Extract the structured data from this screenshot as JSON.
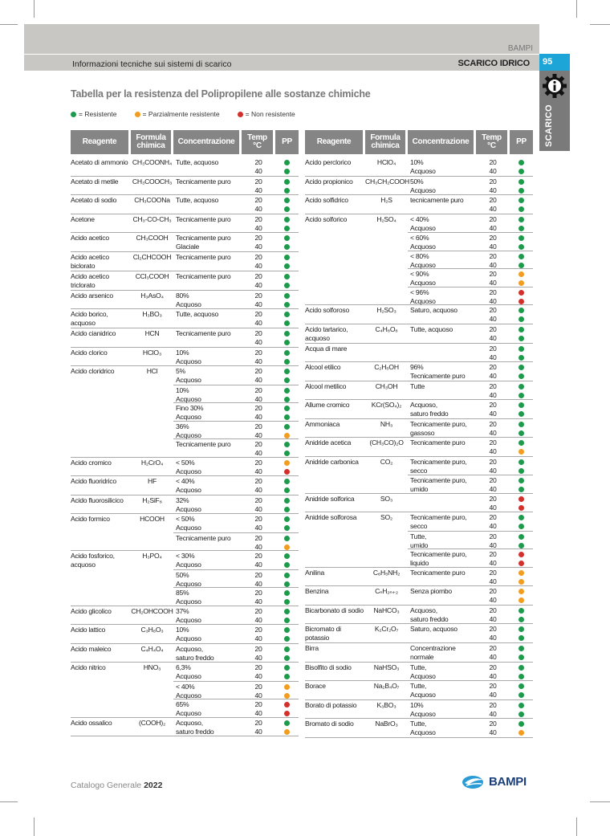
{
  "header": {
    "brand": "BAMPI",
    "title": "Informazioni tecniche sui sistemi di scarico",
    "section": "SCARICO IDRICO",
    "page_number": "95",
    "side_tab": "SCARICO",
    "side_icon": "gear-info-icon"
  },
  "main": {
    "title": "Tabella per la resistenza del Polipropilene alle sostanze chimiche"
  },
  "colors": {
    "g": "#1e9a4c",
    "o": "#f29d1f",
    "r": "#d3302b",
    "accent": "#1ea5d7"
  },
  "legend": [
    {
      "key": "g",
      "label": "= Resistente"
    },
    {
      "key": "o",
      "label": "= Parzialmente resistente"
    },
    {
      "key": "r",
      "label": "= Non resistente"
    }
  ],
  "columns": [
    "Reagente",
    "Formula\nchimica",
    "Concentrazione",
    "Temp\n°C",
    "PP"
  ],
  "temps": "20\n40",
  "tables": [
    [
      {
        "name": "Acetato di ammonio",
        "formula": "CH₃COONH₄",
        "subs": [
          {
            "conc": "Tutte, acquoso",
            "pp": [
              "g",
              "g"
            ]
          }
        ]
      },
      {
        "name": "Acetato di metile",
        "formula": "CH₃COOCH₃",
        "subs": [
          {
            "conc": "Tecnicamente puro",
            "pp": [
              "g",
              "g"
            ]
          }
        ]
      },
      {
        "name": "Acetato di sodio",
        "formula": "CH₃COONa",
        "subs": [
          {
            "conc": "Tutte, acquoso",
            "pp": [
              "g",
              "g"
            ]
          }
        ]
      },
      {
        "name": "Acetone",
        "formula": "CH₃-CO-CH₃",
        "subs": [
          {
            "conc": "Tecnicamente puro",
            "pp": [
              "g",
              "g"
            ]
          }
        ]
      },
      {
        "name": "Acido acetico",
        "formula": "CH₃COOH",
        "subs": [
          {
            "conc": "Tecnicamente puro\nGlaciale",
            "pp": [
              "g",
              "g"
            ]
          }
        ]
      },
      {
        "name": "Acido acetico\nbiclorato",
        "formula": "Cl₂CHCOOH",
        "subs": [
          {
            "conc": "Tecnicamente puro",
            "pp": [
              "g",
              "g"
            ]
          }
        ]
      },
      {
        "name": "Acido acetico\ntriclorato",
        "formula": "CCl₃COOH",
        "subs": [
          {
            "conc": "Tecnicamente puro",
            "pp": [
              "g",
              "g"
            ]
          }
        ]
      },
      {
        "name": "Acido arsenico",
        "formula": "H₃AsO₄",
        "subs": [
          {
            "conc": "80%\nAcquoso",
            "pp": [
              "g",
              "g"
            ]
          }
        ]
      },
      {
        "name": "Acido borico,\nacquoso",
        "formula": "H₃BO₃",
        "subs": [
          {
            "conc": "Tutte, acquoso",
            "pp": [
              "g",
              "g"
            ]
          }
        ]
      },
      {
        "name": "Acido cianidrico",
        "formula": "HCN",
        "subs": [
          {
            "conc": "Tecnicamente puro",
            "pp": [
              "g",
              "g"
            ]
          }
        ]
      },
      {
        "name": "Acido clorico",
        "formula": "HClO₃",
        "subs": [
          {
            "conc": "10%\nAcquoso",
            "pp": [
              "g",
              "g"
            ]
          }
        ]
      },
      {
        "name": "Acido cloridrico",
        "formula": "HCl",
        "subs": [
          {
            "conc": "5%\nAcquoso",
            "pp": [
              "g",
              "g"
            ]
          },
          {
            "conc": "10%\nAcquoso",
            "pp": [
              "g",
              "g"
            ]
          },
          {
            "conc": "Fino 30%\nAcquoso",
            "pp": [
              "g",
              "g"
            ]
          },
          {
            "conc": "36%\nAcquoso",
            "pp": [
              "g",
              "o"
            ]
          },
          {
            "conc": "Tecnicamente puro",
            "pp": [
              "g",
              "g"
            ]
          }
        ]
      },
      {
        "name": "Acido cromico",
        "formula": "H₂CrO₄",
        "subs": [
          {
            "conc": "< 50%\nAcquoso",
            "pp": [
              "o",
              "r"
            ]
          }
        ]
      },
      {
        "name": "Acido fluoridrico",
        "formula": "HF",
        "subs": [
          {
            "conc": "< 40%\nAcquoso",
            "pp": [
              "g",
              "g"
            ]
          }
        ]
      },
      {
        "name": "Acido fluorosilicico",
        "formula": "H₂SiF₆",
        "subs": [
          {
            "conc": "32%\nAcquoso",
            "pp": [
              "g",
              "g"
            ]
          }
        ]
      },
      {
        "name": "Acido formico",
        "formula": "HCOOH",
        "subs": [
          {
            "conc": "< 50%\nAcquoso",
            "pp": [
              "g",
              "g"
            ]
          },
          {
            "conc": "Tecnicamente puro",
            "pp": [
              "g",
              "o"
            ]
          }
        ]
      },
      {
        "name": "Acido fosforico,\nacquoso",
        "formula": "H₃PO₄",
        "subs": [
          {
            "conc": "< 30%\nAcquoso",
            "pp": [
              "g",
              "g"
            ]
          },
          {
            "conc": "50%\nAcquoso",
            "pp": [
              "g",
              "g"
            ]
          },
          {
            "conc": "85%\nAcquoso",
            "pp": [
              "g",
              "g"
            ]
          }
        ]
      },
      {
        "name": "Acido glicolico",
        "formula": "CH₂OHCOOH",
        "subs": [
          {
            "conc": "37%\nAcquoso",
            "pp": [
              "g",
              "g"
            ]
          }
        ]
      },
      {
        "name": "Acido lattico",
        "formula": "C₃H₆O₃",
        "subs": [
          {
            "conc": "10%\nAcquoso",
            "pp": [
              "g",
              "g"
            ]
          }
        ]
      },
      {
        "name": "Acido maleico",
        "formula": "C₄H₄O₄",
        "subs": [
          {
            "conc": "Acquoso,\nsaturo freddo",
            "pp": [
              "g",
              "g"
            ]
          }
        ]
      },
      {
        "name": "Acido nitrico",
        "formula": "HNO₃",
        "subs": [
          {
            "conc": "6,3%\nAcquoso",
            "pp": [
              "g",
              "g"
            ]
          },
          {
            "conc": "< 40%\nAcquoso",
            "pp": [
              "o",
              "o"
            ]
          },
          {
            "conc": "65%\nAcquoso",
            "pp": [
              "r",
              "r"
            ]
          }
        ]
      },
      {
        "name": "Acido ossalico",
        "formula": "(COOH)₂",
        "subs": [
          {
            "conc": "Acquoso,\nsaturo freddo",
            "pp": [
              "g",
              "o"
            ]
          }
        ]
      }
    ],
    [
      {
        "name": "Acido perclorico",
        "formula": "HClO₄",
        "subs": [
          {
            "conc": "10%\nAcquoso",
            "pp": [
              "g",
              "g"
            ]
          }
        ]
      },
      {
        "name": "Acido propionico",
        "formula": "CH₃CH₂COOH",
        "subs": [
          {
            "conc": "50%\nAcquoso",
            "pp": [
              "g",
              "g"
            ]
          }
        ]
      },
      {
        "name": "Acido solfidrico",
        "formula": "H₂S",
        "subs": [
          {
            "conc": "tecnicamente puro",
            "pp": [
              "g",
              "g"
            ]
          }
        ]
      },
      {
        "name": "Acido solforico",
        "formula": "H₂SO₄",
        "subs": [
          {
            "conc": "< 40%\nAcquoso",
            "pp": [
              "g",
              "g"
            ]
          },
          {
            "conc": "< 60%\nAcquoso",
            "pp": [
              "g",
              "g"
            ]
          },
          {
            "conc": "< 80%\nAcquoso",
            "pp": [
              "g",
              "g"
            ]
          },
          {
            "conc": "< 90%\nAcquoso",
            "pp": [
              "o",
              "o"
            ]
          },
          {
            "conc": "< 96%\nAcquoso",
            "pp": [
              "r",
              "r"
            ]
          }
        ]
      },
      {
        "name": "Acido solforoso",
        "formula": "H₂SO₃",
        "subs": [
          {
            "conc": "Saturo, acquoso",
            "pp": [
              "g",
              "g"
            ]
          }
        ]
      },
      {
        "name": "Acido tartarico,\nacquoso",
        "formula": "C₄H₆O₆",
        "subs": [
          {
            "conc": "Tutte, acquoso",
            "pp": [
              "g",
              "g"
            ]
          }
        ]
      },
      {
        "name": "Acqua di mare",
        "formula": "",
        "subs": [
          {
            "conc": "",
            "pp": [
              "g",
              "g"
            ]
          }
        ]
      },
      {
        "name": "Alcool etilico",
        "formula": "C₂H₅OH",
        "subs": [
          {
            "conc": "96%\nTecnicamente puro",
            "pp": [
              "g",
              "g"
            ]
          }
        ]
      },
      {
        "name": "Alcool metilico",
        "formula": "CH₃OH",
        "subs": [
          {
            "conc": "Tutte",
            "pp": [
              "g",
              "g"
            ]
          }
        ]
      },
      {
        "name": "Allume cromico",
        "formula": "KCr(SO₄)₂",
        "subs": [
          {
            "conc": "Acquoso,\nsaturo freddo",
            "pp": [
              "g",
              "g"
            ]
          }
        ]
      },
      {
        "name": "Ammoniaca",
        "formula": "NH₃",
        "subs": [
          {
            "conc": "Tecnicamente puro,\ngassoso",
            "pp": [
              "g",
              "g"
            ]
          }
        ]
      },
      {
        "name": "Anidride acetica",
        "formula": "(CH₃CO)₂O",
        "subs": [
          {
            "conc": "Tecnicamente puro",
            "pp": [
              "g",
              "o"
            ]
          }
        ]
      },
      {
        "name": "Anidride carbonica",
        "formula": "CO₂",
        "subs": [
          {
            "conc": "Tecnicamente puro,\nsecco",
            "pp": [
              "g",
              "g"
            ]
          },
          {
            "conc": "Tecnicamente puro,\numido",
            "pp": [
              "g",
              "g"
            ]
          }
        ]
      },
      {
        "name": "Anidride solforica",
        "formula": "SO₃",
        "subs": [
          {
            "conc": "",
            "pp": [
              "r",
              "r"
            ]
          }
        ]
      },
      {
        "name": "Anidride solforosa",
        "formula": "SO₂",
        "subs": [
          {
            "conc": "Tecnicamente puro,\nsecco",
            "pp": [
              "g",
              "g"
            ]
          },
          {
            "conc": "Tutte,\numido",
            "pp": [
              "g",
              "g"
            ]
          },
          {
            "conc": "Tecnicamente puro,\nliquido",
            "pp": [
              "r",
              "r"
            ]
          }
        ]
      },
      {
        "name": "Anilina",
        "formula": "C₆H₅NH₂",
        "subs": [
          {
            "conc": "Tecnicamente puro",
            "pp": [
              "o",
              "o"
            ]
          }
        ]
      },
      {
        "name": "Benzina",
        "formula": "CₙH₂ₙ₊₂",
        "subs": [
          {
            "conc": "Senza piombo",
            "pp": [
              "o",
              "o"
            ]
          }
        ]
      },
      {
        "name": "Bicarbonato di sodio",
        "formula": "NaHCO₃",
        "subs": [
          {
            "conc": "Acquoso,\nsaturo freddo",
            "pp": [
              "g",
              "g"
            ]
          }
        ]
      },
      {
        "name": "Bicromato di\npotassio",
        "formula": "K₂Cr₂O₇",
        "subs": [
          {
            "conc": "Saturo, acquoso",
            "pp": [
              "g",
              "g"
            ]
          }
        ]
      },
      {
        "name": "Birra",
        "formula": "",
        "subs": [
          {
            "conc": "Concentrazione\nnormale",
            "pp": [
              "g",
              "g"
            ]
          }
        ]
      },
      {
        "name": "Bisolfito di sodio",
        "formula": "NaHSO₃",
        "subs": [
          {
            "conc": "Tutte,\nAcquoso",
            "pp": [
              "g",
              "g"
            ]
          }
        ]
      },
      {
        "name": "Borace",
        "formula": "Na₂B₄O₇",
        "subs": [
          {
            "conc": "Tutte,\nAcquoso",
            "pp": [
              "g",
              "g"
            ]
          }
        ]
      },
      {
        "name": "Borato di potassio",
        "formula": "K₃BO₃",
        "subs": [
          {
            "conc": "10%\nAcquoso",
            "pp": [
              "g",
              "g"
            ]
          }
        ]
      },
      {
        "name": "Bromato di sodio",
        "formula": "NaBrO₃",
        "subs": [
          {
            "conc": "Tutte,\nAcquoso",
            "pp": [
              "g",
              "o"
            ]
          }
        ]
      }
    ]
  ],
  "footer": {
    "catalog": "Catalogo Generale",
    "year": "2022",
    "logo": "BAMPI"
  }
}
